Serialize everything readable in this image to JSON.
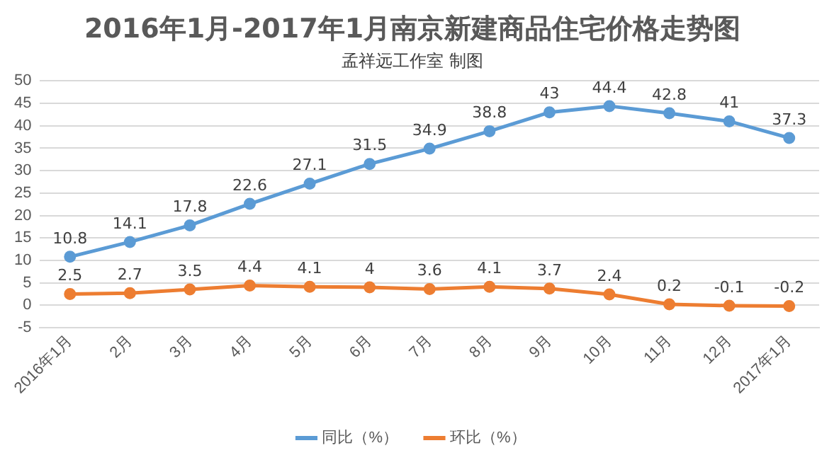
{
  "chart_data": {
    "type": "line",
    "title": "2016年1月-2017年1月南京新建商品住宅价格走势图",
    "subtitle": "孟祥远工作室 制图",
    "categories": [
      "2016年1月",
      "2月",
      "3月",
      "4月",
      "5月",
      "6月",
      "7月",
      "8月",
      "9月",
      "10月",
      "11月",
      "12月",
      "2017年1月"
    ],
    "series": [
      {
        "name": "同比（%）",
        "color": "#5b9bd5",
        "values": [
          10.8,
          14.1,
          17.8,
          22.6,
          27.1,
          31.5,
          34.9,
          38.8,
          43,
          44.4,
          42.8,
          41,
          37.3
        ]
      },
      {
        "name": "环比（%）",
        "color": "#ed7d31",
        "values": [
          2.5,
          2.7,
          3.5,
          4.4,
          4.1,
          4,
          3.6,
          4.1,
          3.7,
          2.4,
          0.2,
          -0.1,
          -0.2
        ]
      }
    ],
    "ylim": [
      -5,
      50
    ],
    "yticks": [
      -5,
      0,
      5,
      10,
      15,
      20,
      25,
      30,
      35,
      40,
      45,
      50
    ],
    "grid": "y",
    "legend": "bottom",
    "marker": "circle",
    "line_style": "solid",
    "data_labels": true
  }
}
